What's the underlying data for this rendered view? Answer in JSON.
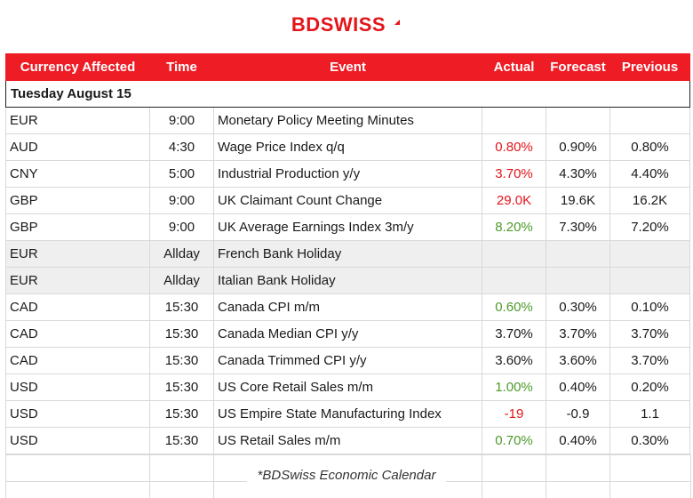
{
  "logo": {
    "text_bd": "BD",
    "text_swiss": "SWISS"
  },
  "table": {
    "headers": [
      "Currency Affected",
      "Time",
      "Event",
      "Actual",
      "Forecast",
      "Previous"
    ],
    "date_label": "Tuesday August 15",
    "rows": [
      {
        "currency": "EUR",
        "time": "9:00",
        "event": "Monetary Policy Meeting Minutes",
        "actual": "",
        "forecast": "",
        "previous": ""
      },
      {
        "currency": "AUD",
        "time": "4:30",
        "event": "Wage Price Index q/q",
        "actual": "0.80%",
        "forecast": "0.90%",
        "previous": "0.80%"
      },
      {
        "currency": "CNY",
        "time": "5:00",
        "event": "Industrial Production y/y",
        "actual": "3.70%",
        "forecast": "4.30%",
        "previous": "4.40%"
      },
      {
        "currency": "GBP",
        "time": "9:00",
        "event": "UK Claimant Count Change",
        "actual": "29.0K",
        "forecast": "19.6K",
        "previous": "16.2K"
      },
      {
        "currency": "GBP",
        "time": "9:00",
        "event": "UK Average Earnings Index 3m/y",
        "actual": "8.20%",
        "forecast": "7.30%",
        "previous": "7.20%"
      },
      {
        "currency": "EUR",
        "time": "Allday",
        "event": "French Bank Holiday",
        "actual": "",
        "forecast": "",
        "previous": ""
      },
      {
        "currency": "EUR",
        "time": "Allday",
        "event": "Italian Bank Holiday",
        "actual": "",
        "forecast": "",
        "previous": ""
      },
      {
        "currency": "CAD",
        "time": "15:30",
        "event": "Canada CPI m/m",
        "actual": "0.60%",
        "forecast": "0.30%",
        "previous": "0.10%"
      },
      {
        "currency": "CAD",
        "time": "15:30",
        "event": "Canada Median CPI y/y",
        "actual": "3.70%",
        "forecast": "3.70%",
        "previous": "3.70%"
      },
      {
        "currency": "CAD",
        "time": "15:30",
        "event": "Canada Trimmed CPI y/y",
        "actual": "3.60%",
        "forecast": "3.60%",
        "previous": "3.70%"
      },
      {
        "currency": "USD",
        "time": "15:30",
        "event": "US Core Retail Sales m/m",
        "actual": "1.00%",
        "forecast": "0.40%",
        "previous": "0.20%"
      },
      {
        "currency": "USD",
        "time": "15:30",
        "event": "US Empire State Manufacturing Index",
        "actual": "-19",
        "forecast": "-0.9",
        "previous": "1.1"
      },
      {
        "currency": "USD",
        "time": "15:30",
        "event": "US Retail Sales m/m",
        "actual": "0.70%",
        "forecast": "0.40%",
        "previous": "0.30%"
      }
    ]
  },
  "footer": "*BDSwiss Economic Calendar",
  "colors": {
    "brand_red": "#ee1c25",
    "negative": "#e4141b",
    "positive": "#4c9a2a",
    "holiday_bg": "#efefef"
  }
}
